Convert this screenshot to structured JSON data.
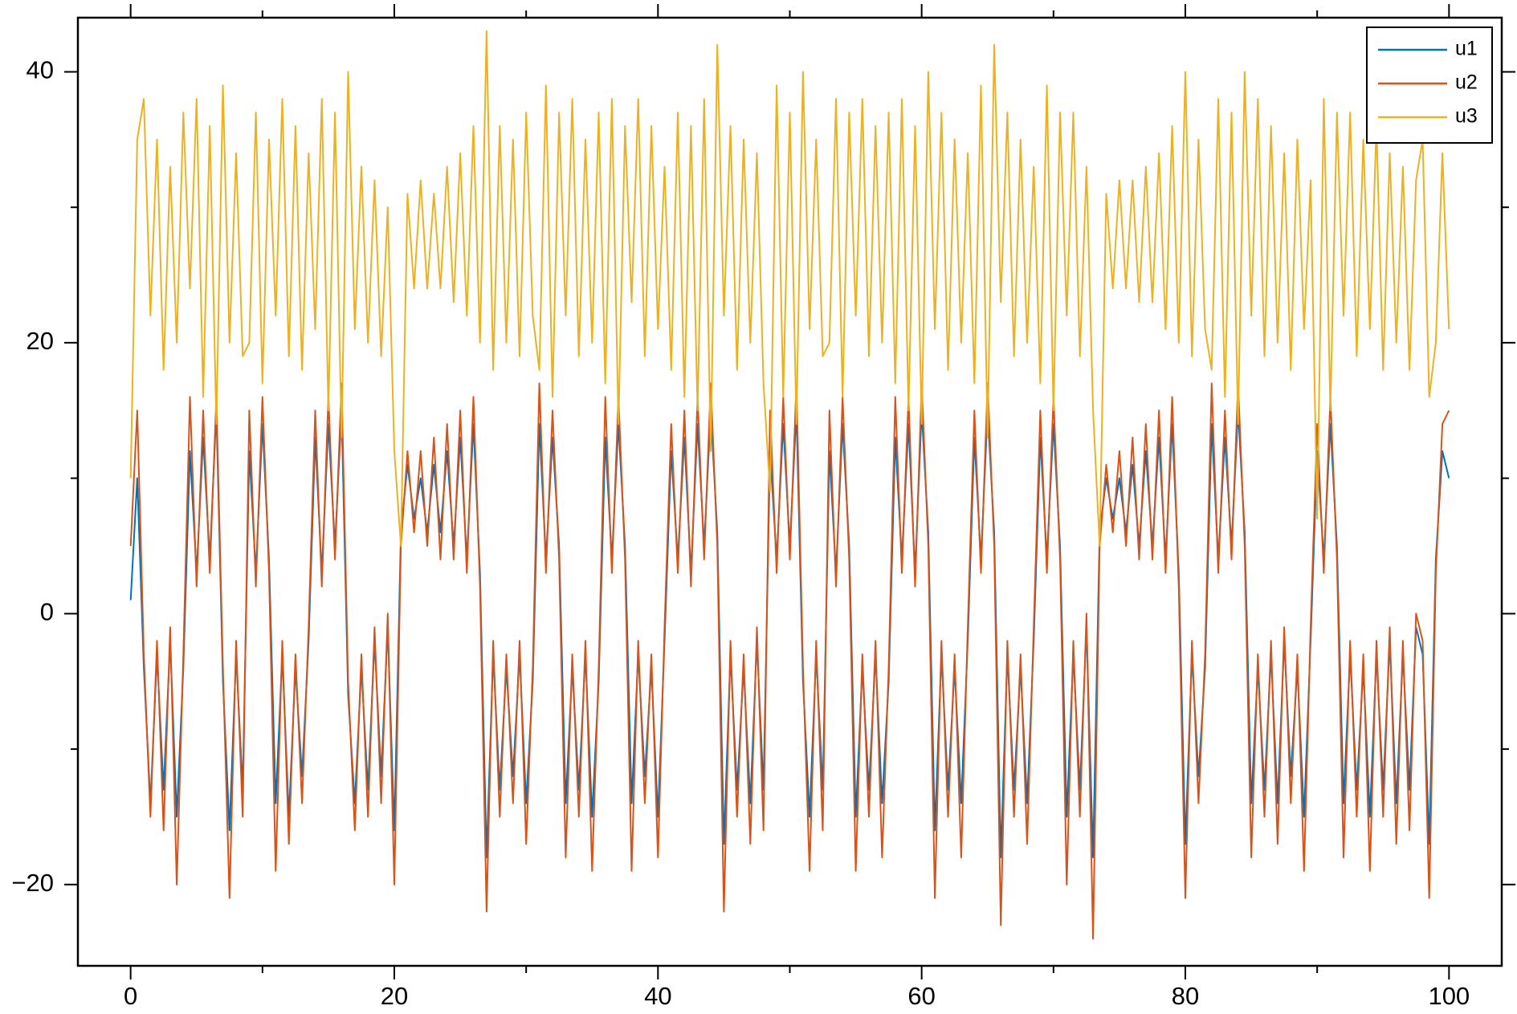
{
  "chart_data": {
    "type": "line",
    "x": [
      0,
      0.5,
      1,
      1.5,
      2,
      2.5,
      3,
      3.5,
      4,
      4.5,
      5,
      5.5,
      6,
      6.5,
      7,
      7.5,
      8,
      8.5,
      9,
      9.5,
      10,
      10.5,
      11,
      11.5,
      12,
      12.5,
      13,
      13.5,
      14,
      14.5,
      15,
      15.5,
      16,
      16.5,
      17,
      17.5,
      18,
      18.5,
      19,
      19.5,
      20,
      20.5,
      21,
      21.5,
      22,
      22.5,
      23,
      23.5,
      24,
      24.5,
      25,
      25.5,
      26,
      26.5,
      27,
      27.5,
      28,
      28.5,
      29,
      29.5,
      30,
      30.5,
      31,
      31.5,
      32,
      32.5,
      33,
      33.5,
      34,
      34.5,
      35,
      35.5,
      36,
      36.5,
      37,
      37.5,
      38,
      38.5,
      39,
      39.5,
      40,
      40.5,
      41,
      41.5,
      42,
      42.5,
      43,
      43.5,
      44,
      44.5,
      45,
      45.5,
      46,
      46.5,
      47,
      47.5,
      48,
      48.5,
      49,
      49.5,
      50,
      50.5,
      51,
      51.5,
      52,
      52.5,
      53,
      53.5,
      54,
      54.5,
      55,
      55.5,
      56,
      56.5,
      57,
      57.5,
      58,
      58.5,
      59,
      59.5,
      60,
      60.5,
      61,
      61.5,
      62,
      62.5,
      63,
      63.5,
      64,
      64.5,
      65,
      65.5,
      66,
      66.5,
      67,
      67.5,
      68,
      68.5,
      69,
      69.5,
      70,
      70.5,
      71,
      71.5,
      72,
      72.5,
      73,
      73.5,
      74,
      74.5,
      75,
      75.5,
      76,
      76.5,
      77,
      77.5,
      78,
      78.5,
      79,
      79.5,
      80,
      80.5,
      81,
      81.5,
      82,
      82.5,
      83,
      83.5,
      84,
      84.5,
      85,
      85.5,
      86,
      86.5,
      87,
      87.5,
      88,
      88.5,
      89,
      89.5,
      90,
      90.5,
      91,
      91.5,
      92,
      92.5,
      93,
      93.5,
      94,
      94.5,
      95,
      95.5,
      96,
      96.5,
      97,
      97.5,
      98,
      98.5,
      99,
      99.5,
      100
    ],
    "series": [
      {
        "name": "u1",
        "color": "#0072bd",
        "values": [
          1,
          10,
          -4,
          -14,
          -3,
          -13,
          -2,
          -15,
          -4,
          12,
          3,
          13,
          4,
          15,
          -5,
          -16,
          -3,
          -13,
          12,
          3,
          14,
          4,
          -14,
          -3,
          -15,
          -4,
          -12,
          -2,
          13,
          3,
          14,
          5,
          15,
          -6,
          -14,
          -4,
          -13,
          -2,
          -12,
          -1,
          -16,
          6,
          11,
          7,
          10,
          6,
          11,
          6,
          12,
          5,
          13,
          4,
          14,
          3,
          -18,
          -3,
          -13,
          -4,
          -12,
          -3,
          -14,
          -5,
          14,
          4,
          13,
          5,
          -14,
          -4,
          -13,
          -3,
          -15,
          -5,
          13,
          4,
          14,
          5,
          -14,
          -3,
          -12,
          -4,
          -15,
          -2,
          12,
          4,
          13,
          3,
          14,
          5,
          15,
          6,
          -17,
          -3,
          -13,
          -4,
          -14,
          -2,
          -13,
          12,
          4,
          14,
          5,
          15,
          -5,
          -15,
          -3,
          -13,
          12,
          3,
          14,
          5,
          -15,
          -4,
          -13,
          -3,
          -14,
          -5,
          13,
          4,
          14,
          3,
          15,
          6,
          -16,
          -3,
          -13,
          -4,
          -14,
          -2,
          13,
          4,
          15,
          6,
          -18,
          -3,
          -13,
          -4,
          -14,
          -2,
          13,
          4,
          14,
          5,
          -15,
          -3,
          -13,
          -1,
          -18,
          6,
          10,
          7,
          10,
          6,
          11,
          5,
          12,
          5,
          13,
          4,
          14,
          3,
          -17,
          -3,
          -12,
          -4,
          14,
          4,
          13,
          5,
          15,
          6,
          -14,
          -4,
          -13,
          -3,
          -14,
          -2,
          -12,
          -4,
          -15,
          -2,
          12,
          4,
          14,
          5,
          -14,
          -3,
          -13,
          -4,
          -15,
          -3,
          -13,
          -2,
          -14,
          -3,
          -13,
          -1,
          -3,
          -17,
          4,
          12,
          10
        ]
      },
      {
        "name": "u2",
        "color": "#d95319",
        "values": [
          5,
          15,
          -3,
          -15,
          -2,
          -16,
          -1,
          -20,
          -3,
          16,
          2,
          15,
          3,
          16,
          -4,
          -21,
          -2,
          -15,
          15,
          2,
          16,
          3,
          -19,
          -2,
          -17,
          -3,
          -14,
          -1,
          15,
          2,
          16,
          4,
          17,
          -5,
          -16,
          -3,
          -15,
          -1,
          -14,
          0,
          -20,
          5,
          12,
          6,
          12,
          5,
          13,
          4,
          14,
          4,
          15,
          3,
          16,
          2,
          -22,
          -2,
          -15,
          -3,
          -14,
          -2,
          -17,
          -4,
          17,
          3,
          15,
          4,
          -18,
          -3,
          -15,
          -2,
          -19,
          -4,
          16,
          3,
          16,
          4,
          -19,
          -2,
          -14,
          -3,
          -18,
          -1,
          14,
          3,
          15,
          2,
          16,
          4,
          17,
          5,
          -22,
          -2,
          -15,
          -3,
          -17,
          -1,
          -16,
          15,
          3,
          16,
          4,
          17,
          -4,
          -19,
          -2,
          -16,
          15,
          2,
          16,
          4,
          -19,
          -3,
          -15,
          -2,
          -18,
          -4,
          16,
          3,
          16,
          2,
          17,
          5,
          -21,
          -2,
          -15,
          -3,
          -18,
          -1,
          15,
          3,
          17,
          5,
          -23,
          -2,
          -15,
          -3,
          -17,
          -1,
          15,
          3,
          16,
          4,
          -20,
          -2,
          -15,
          0,
          -24,
          5,
          11,
          6,
          12,
          5,
          13,
          4,
          14,
          4,
          15,
          3,
          16,
          2,
          -21,
          -2,
          -14,
          -3,
          17,
          3,
          15,
          4,
          17,
          5,
          -18,
          -3,
          -15,
          -2,
          -17,
          -1,
          -14,
          -3,
          -19,
          -1,
          14,
          3,
          16,
          4,
          -18,
          -2,
          -15,
          -3,
          -19,
          -2,
          -15,
          -1,
          -17,
          -2,
          -16,
          0,
          -2,
          -21,
          3,
          14,
          15
        ]
      },
      {
        "name": "u3",
        "color": "#edb120",
        "values": [
          10,
          35,
          38,
          22,
          35,
          18,
          33,
          20,
          37,
          24,
          38,
          16,
          36,
          14,
          39,
          20,
          34,
          19,
          20,
          37,
          17,
          35,
          22,
          38,
          19,
          36,
          18,
          34,
          21,
          38,
          15,
          37,
          13,
          40,
          21,
          33,
          20,
          32,
          19,
          30,
          12,
          5,
          31,
          24,
          32,
          24,
          31,
          24,
          33,
          23,
          34,
          22,
          36,
          20,
          43,
          18,
          36,
          20,
          35,
          19,
          37,
          22,
          18,
          39,
          16,
          37,
          22,
          38,
          19,
          35,
          20,
          37,
          17,
          38,
          14,
          36,
          23,
          38,
          19,
          36,
          21,
          33,
          18,
          37,
          16,
          36,
          15,
          38,
          12,
          42,
          22,
          36,
          18,
          35,
          20,
          34,
          17,
          9,
          39,
          16,
          37,
          14,
          40,
          21,
          35,
          19,
          20,
          38,
          16,
          37,
          22,
          38,
          19,
          36,
          20,
          37,
          17,
          38,
          15,
          36,
          14,
          40,
          21,
          37,
          18,
          35,
          20,
          34,
          17,
          39,
          13,
          42,
          23,
          37,
          19,
          35,
          20,
          33,
          17,
          39,
          15,
          37,
          22,
          37,
          19,
          33,
          15,
          5,
          31,
          24,
          32,
          24,
          32,
          23,
          33,
          23,
          34,
          21,
          36,
          20,
          40,
          19,
          35,
          21,
          18,
          38,
          16,
          37,
          14,
          40,
          22,
          38,
          19,
          36,
          20,
          34,
          18,
          35,
          21,
          32,
          7,
          38,
          15,
          37,
          22,
          37,
          19,
          35,
          21,
          36,
          18,
          34,
          20,
          33,
          18,
          32,
          35,
          16,
          20,
          34,
          21
        ]
      }
    ],
    "xlim": [
      -4,
      104
    ],
    "ylim": [
      -26,
      44
    ],
    "xticks": [
      0,
      20,
      40,
      60,
      80,
      100
    ],
    "yticks": [
      {
        "value": -20,
        "label": "−20"
      },
      0,
      20,
      40
    ],
    "xminor": [
      10,
      30,
      50,
      70,
      90
    ],
    "yminor": [
      -10,
      10,
      30
    ],
    "legend": "top-right"
  }
}
